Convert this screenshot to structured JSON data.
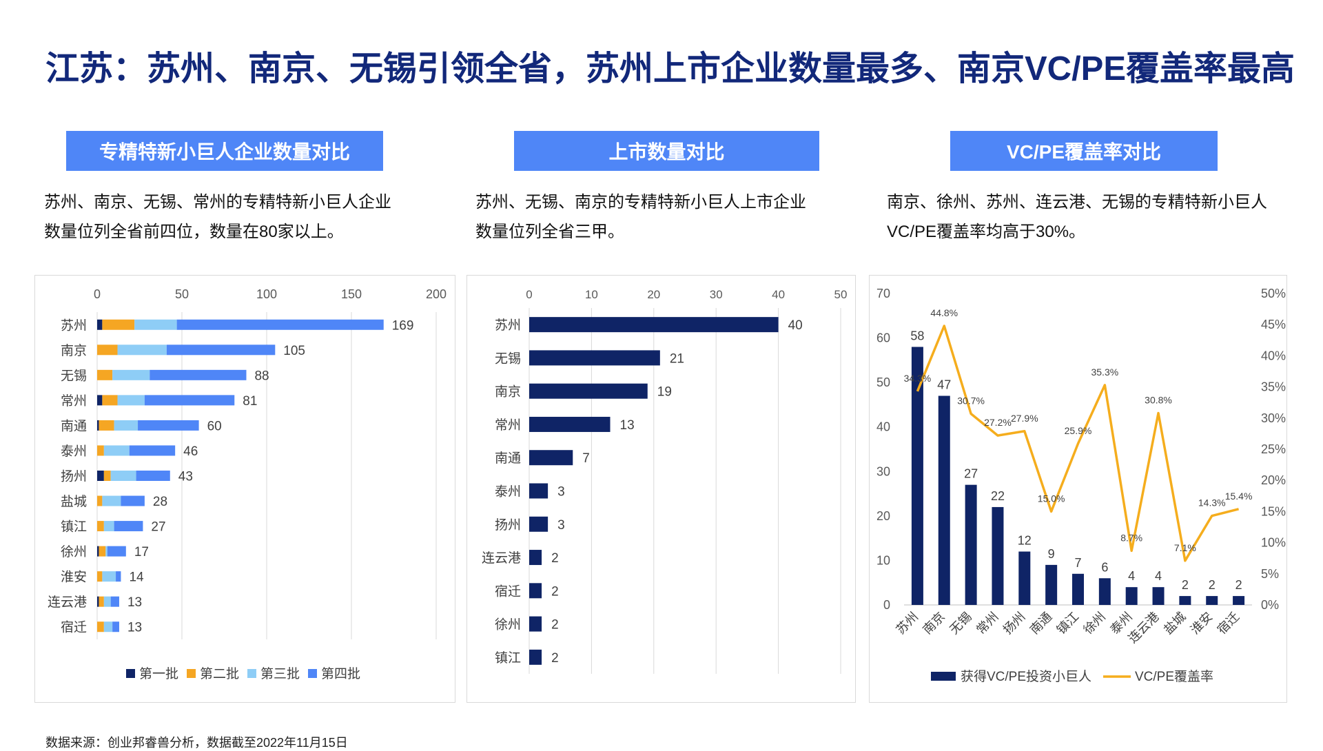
{
  "title": "江苏：苏州、南京、无锡引领全省，苏州上市企业数量最多、南京VC/PE覆盖率最高",
  "sections": [
    {
      "header": "专精特新小巨人企业数量对比",
      "desc_line1": "苏州、南京、无锡、常州的专精特新小巨人企业",
      "desc_line2": "数量位列全省前四位，数量在80家以上。"
    },
    {
      "header": "上市数量对比",
      "desc_line1": "苏州、无锡、南京的专精特新小巨人上市企业",
      "desc_line2": "数量位列全省三甲。"
    },
    {
      "header": "VC/PE覆盖率对比",
      "desc_line1": "南京、徐州、苏州、连云港、无锡的专精特新小巨人",
      "desc_line2": "VC/PE覆盖率均高于30%。"
    }
  ],
  "footer": "数据来源：创业邦睿兽分析，数据截至2022年11月15日",
  "colors": {
    "accent": "#4f86f7",
    "title": "#12287a",
    "navy": "#0f2466",
    "batch1": "#0f2466",
    "batch2": "#f5a623",
    "batch3": "#8ecdf6",
    "batch4": "#4f86f7",
    "line": "#f5ad1d"
  },
  "chart_data": [
    {
      "type": "bar",
      "orientation": "horizontal",
      "stacked": true,
      "categories": [
        "苏州",
        "南京",
        "无锡",
        "常州",
        "南通",
        "泰州",
        "扬州",
        "盐城",
        "镇江",
        "徐州",
        "淮安",
        "连云港",
        "宿迁"
      ],
      "series": [
        {
          "name": "第一批",
          "values": [
            3,
            0,
            0,
            3,
            1,
            0,
            4,
            0,
            0,
            1,
            0,
            1,
            0
          ]
        },
        {
          "name": "第二批",
          "values": [
            19,
            12,
            9,
            9,
            9,
            4,
            4,
            3,
            4,
            4,
            3,
            3,
            4
          ]
        },
        {
          "name": "第三批",
          "values": [
            25,
            29,
            22,
            16,
            14,
            15,
            15,
            11,
            6,
            1,
            8,
            4,
            5
          ]
        },
        {
          "name": "第四批",
          "values": [
            122,
            64,
            57,
            53,
            36,
            27,
            20,
            14,
            17,
            11,
            3,
            5,
            4
          ]
        }
      ],
      "totals": [
        169,
        105,
        88,
        81,
        60,
        46,
        43,
        28,
        27,
        17,
        14,
        13,
        13
      ],
      "xlim": [
        0,
        200
      ],
      "xticks": [
        0,
        50,
        100,
        150,
        200
      ],
      "legend": "bottom"
    },
    {
      "type": "bar",
      "orientation": "horizontal",
      "categories": [
        "苏州",
        "无锡",
        "南京",
        "常州",
        "南通",
        "泰州",
        "扬州",
        "连云港",
        "宿迁",
        "徐州",
        "镇江"
      ],
      "values": [
        40,
        21,
        19,
        13,
        7,
        3,
        3,
        2,
        2,
        2,
        2
      ],
      "xlim": [
        0,
        50
      ],
      "xticks": [
        0,
        10,
        20,
        30,
        40,
        50
      ]
    },
    {
      "type": "bar+line",
      "categories": [
        "苏州",
        "南京",
        "无锡",
        "常州",
        "扬州",
        "南通",
        "镇江",
        "徐州",
        "泰州",
        "连云港",
        "盐城",
        "淮安",
        "宿迁"
      ],
      "bar_series": {
        "name": "获得VC/PE投资小巨人",
        "values": [
          58,
          47,
          27,
          22,
          12,
          9,
          7,
          6,
          4,
          4,
          2,
          2,
          2
        ]
      },
      "line_series": {
        "name": "VC/PE覆盖率",
        "values": [
          34.3,
          44.8,
          30.7,
          27.2,
          27.9,
          15.0,
          25.9,
          35.3,
          8.7,
          30.8,
          7.1,
          14.3,
          15.4
        ],
        "labels": [
          "34.3%",
          "44.8%",
          "30.7%",
          "27.2%",
          "27.9%",
          "15.0%",
          "25.9%",
          "35.3%",
          "8.7%",
          "30.8%",
          "7.1%",
          "14.3%",
          "15.4%"
        ]
      },
      "ylim_left": [
        0,
        70
      ],
      "yticks_left": [
        0,
        10,
        20,
        30,
        40,
        50,
        60,
        70
      ],
      "ylim_right": [
        0,
        50
      ],
      "yticks_right": [
        "0%",
        "5%",
        "10%",
        "15%",
        "20%",
        "25%",
        "30%",
        "35%",
        "40%",
        "45%",
        "50%"
      ],
      "legend": "bottom"
    }
  ]
}
